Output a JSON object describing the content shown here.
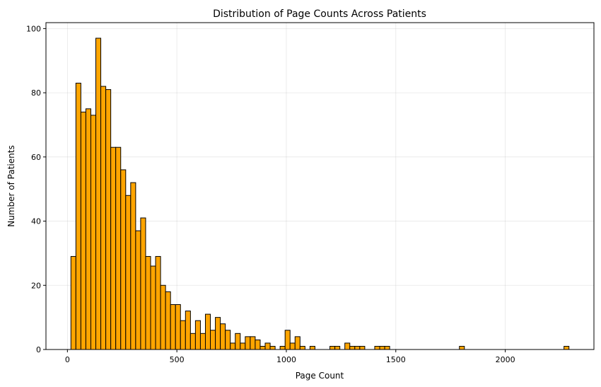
{
  "chart_data": {
    "type": "bar",
    "subtype": "histogram",
    "title": "Distribution of Page Counts Across Patients",
    "xlabel": "Page Count",
    "ylabel": "Number of Patients",
    "bin_range": [
      16,
      2291
    ],
    "bin_count": 100,
    "counts": [
      29,
      83,
      74,
      75,
      73,
      97,
      82,
      81,
      63,
      63,
      56,
      48,
      52,
      37,
      41,
      29,
      26,
      29,
      20,
      18,
      14,
      14,
      9,
      12,
      5,
      9,
      5,
      11,
      6,
      10,
      8,
      6,
      2,
      5,
      2,
      4,
      4,
      3,
      1,
      2,
      1,
      0,
      1,
      6,
      2,
      4,
      1,
      0,
      1,
      0,
      0,
      0,
      1,
      1,
      0,
      2,
      1,
      1,
      1,
      0,
      0,
      1,
      1,
      1,
      0,
      0,
      0,
      0,
      0,
      0,
      0,
      0,
      0,
      0,
      0,
      0,
      0,
      0,
      1,
      0,
      0,
      0,
      0,
      0,
      0,
      0,
      0,
      0,
      0,
      0,
      0,
      0,
      0,
      0,
      0,
      0,
      0,
      0,
      0,
      1
    ],
    "xlim": [
      -98,
      2405
    ],
    "ylim": [
      0,
      101.85
    ],
    "xticks": [
      0,
      500,
      1000,
      1500,
      2000
    ],
    "xtick_labels": [
      "0",
      "500",
      "1000",
      "1500",
      "2000"
    ],
    "yticks": [
      0,
      20,
      40,
      60,
      80,
      100
    ],
    "ytick_labels": [
      "0",
      "20",
      "40",
      "60",
      "80",
      "100"
    ],
    "grid": true,
    "bar_color": "#ffa500",
    "edge_color": "#000000"
  }
}
